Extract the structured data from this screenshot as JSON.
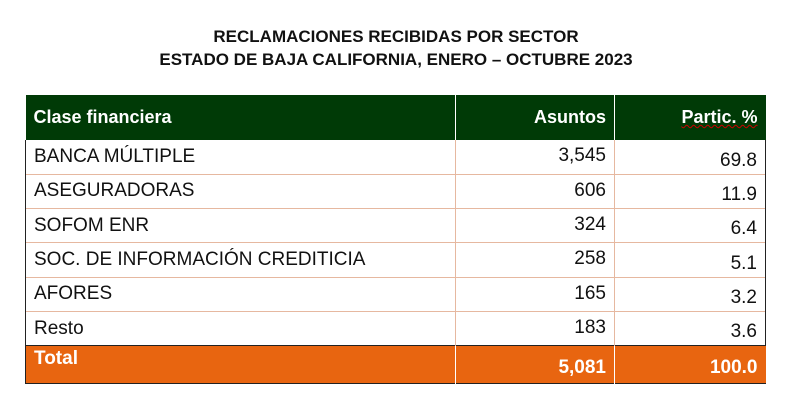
{
  "title": {
    "line1": "RECLAMACIONES RECIBIDAS POR SECTOR",
    "line2": "ESTADO DE BAJA CALIFORNIA, ENERO – OCTUBRE 2023"
  },
  "table": {
    "headers": [
      "Clase financiera",
      "Asuntos",
      "Partic. %"
    ],
    "rows": [
      {
        "clase": "BANCA MÚLTIPLE",
        "asuntos": "3,545",
        "partic": "69.8"
      },
      {
        "clase": "ASEGURADORAS",
        "asuntos": "606",
        "partic": "11.9"
      },
      {
        "clase": "SOFOM ENR",
        "asuntos": "324",
        "partic": "6.4"
      },
      {
        "clase": "SOC. DE INFORMACIÓN CREDITICIA",
        "asuntos": "258",
        "partic": "5.1"
      },
      {
        "clase": "AFORES",
        "asuntos": "165",
        "partic": "3.2"
      },
      {
        "clase": "Resto",
        "asuntos": "183",
        "partic": "3.6"
      }
    ],
    "total": {
      "label": "Total",
      "asuntos": "5,081",
      "partic": "100.0"
    }
  },
  "colors": {
    "header_bg": "#003a06",
    "total_bg": "#e86510",
    "row_border": "#e6b8a0"
  }
}
